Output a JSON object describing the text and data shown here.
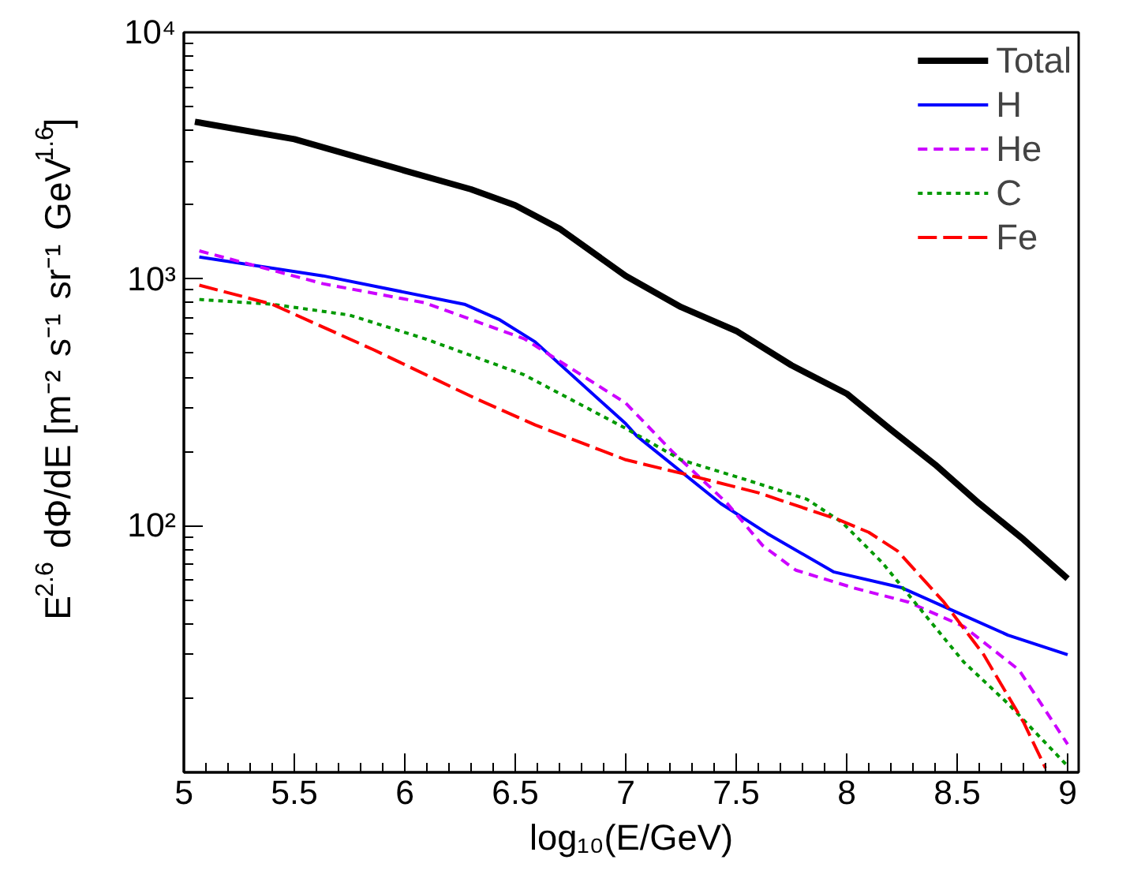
{
  "chart_data": {
    "type": "line",
    "xlabel": "log₁₀(E/GeV)",
    "ylabel": "E$^{2.6}$ dΦ/dE [m⁻² s⁻¹ sr⁻¹ GeV$^{1.6}$]",
    "log": "y",
    "grid": false,
    "legend": "top right",
    "marker": "none",
    "xlim": [
      5,
      9.05
    ],
    "xticks": [
      5,
      5.5,
      6,
      6.5,
      7,
      7.5,
      8,
      8.5,
      9
    ],
    "ylim": [
      10,
      10000
    ],
    "yticks": [
      {
        "value": 100,
        "label": "10²"
      },
      {
        "value": 1000,
        "label": "10³"
      },
      {
        "value": 10000,
        "label": "10⁴"
      }
    ],
    "series": [
      {
        "name": "Total",
        "color": "#000000",
        "line_style": "solid",
        "x": [
          5.05,
          5.5,
          6,
          6.3,
          6.5,
          6.7,
          7,
          7.25,
          7.5,
          7.75,
          8,
          8.2,
          8.4,
          8.6,
          8.8,
          9.0
        ],
        "values": [
          4340,
          3690,
          2750,
          2310,
          1990,
          1600,
          1030,
          770,
          616,
          447,
          343,
          245,
          177,
          123,
          88,
          61
        ]
      },
      {
        "name": "H",
        "color": "#0000ff",
        "line_style": "solid",
        "x": [
          5.07,
          5.63,
          6.27,
          6.43,
          6.59,
          7.0,
          7.05,
          7.43,
          7.64,
          7.94,
          8.25,
          8.44,
          8.73,
          9.0
        ],
        "values": [
          1228,
          1030,
          790,
          683,
          556,
          259,
          231,
          123,
          93,
          65,
          56,
          47,
          36,
          30
        ]
      },
      {
        "name": "He",
        "color": "#cc00ff",
        "line_style": "dashed",
        "x": [
          5.07,
          5.63,
          6.09,
          6.54,
          7.0,
          7.21,
          7.46,
          7.62,
          7.77,
          8.03,
          8.28,
          8.53,
          8.78,
          9.0
        ],
        "values": [
          1300,
          957,
          801,
          573,
          314,
          200,
          123,
          83,
          66,
          56,
          49,
          39,
          26,
          13
        ]
      },
      {
        "name": "C",
        "color": "#009900",
        "line_style": "dotted",
        "x": [
          5.07,
          5.4,
          5.75,
          6.09,
          6.54,
          7.0,
          7.25,
          7.55,
          7.82,
          7.98,
          8.16,
          8.35,
          8.53,
          8.73,
          9.0
        ],
        "values": [
          826,
          790,
          714,
          573,
          409,
          248,
          185,
          153,
          128,
          103,
          71,
          44,
          28,
          19,
          10.6
        ]
      },
      {
        "name": "Fe",
        "color": "#ff0000",
        "line_style": "longdash",
        "x": [
          5.07,
          5.4,
          5.86,
          6.32,
          6.59,
          7.0,
          7.29,
          7.6,
          7.96,
          8.1,
          8.23,
          8.44,
          8.62,
          8.8,
          8.9
        ],
        "values": [
          944,
          790,
          516,
          328,
          256,
          185,
          160,
          136,
          106,
          94,
          79,
          49,
          30,
          16,
          10.4
        ]
      }
    ]
  }
}
